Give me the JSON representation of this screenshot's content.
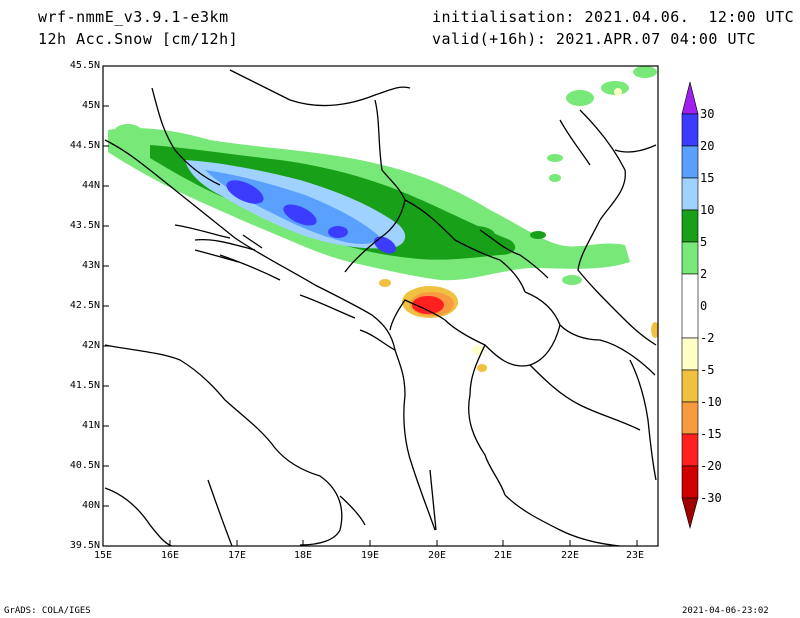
{
  "header": {
    "model": "wrf-nmmE_v3.9.1-e3km",
    "field": "12h Acc.Snow [cm/12h]",
    "init": "initialisation: 2021.04.06.  12:00 UTC",
    "valid": "valid(+16h): 2021.APR.07 04:00 UTC"
  },
  "footer": {
    "left": "GrADS: COLA/IGES",
    "right": "2021-04-06-23:02"
  },
  "map": {
    "lat_ticks": [
      "45.5N",
      "45N",
      "44.5N",
      "44N",
      "43.5N",
      "43N",
      "42.5N",
      "42N",
      "41.5N",
      "41N",
      "40.5N",
      "40N",
      "39.5N"
    ],
    "lon_ticks": [
      "15E",
      "16E",
      "17E",
      "18E",
      "19E",
      "20E",
      "21E",
      "22E",
      "23E"
    ]
  },
  "colorbar": {
    "labels": [
      "30",
      "20",
      "15",
      "10",
      "5",
      "2",
      "0",
      "-2",
      "-5",
      "-10",
      "-15",
      "-20",
      "-30"
    ],
    "colors": [
      "#a020f0",
      "#3c3cff",
      "#5aa0ff",
      "#a0d2ff",
      "#18a018",
      "#78e878",
      "#ffffff",
      "#ffffc8",
      "#f0c040",
      "#f89a40",
      "#ff2020",
      "#d00000",
      "#a00000"
    ]
  }
}
